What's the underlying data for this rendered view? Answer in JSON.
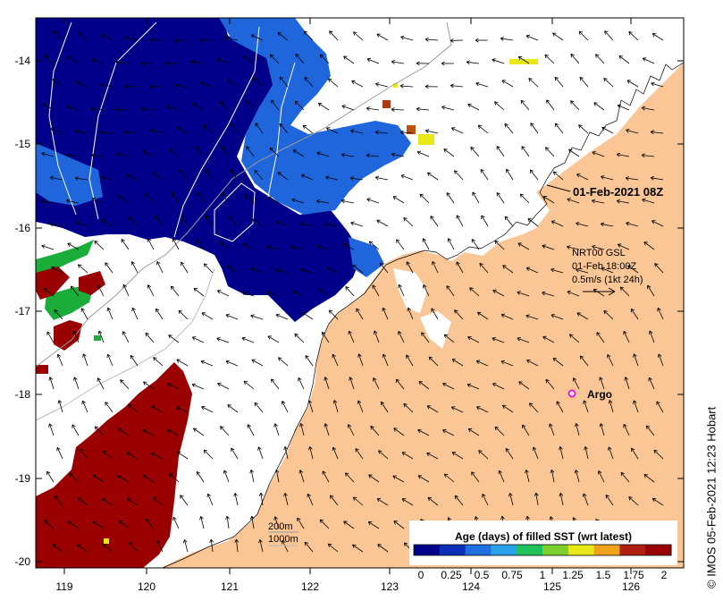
{
  "map": {
    "x_ticks": [
      "119",
      "120",
      "121",
      "122",
      "123",
      "124",
      "125",
      "126"
    ],
    "y_ticks": [
      "-14",
      "-15",
      "-16",
      "-17",
      "-18",
      "-19",
      "-20"
    ],
    "timestamp_label": "01-Feb-2021 08Z",
    "current_block": {
      "line1": "NRT00 GSL",
      "line2": "01-Feb 18:00Z",
      "line3": "0.5m/s (1kt 24h)"
    },
    "argo_label": "Argo",
    "depth_labels": [
      "200m",
      "1000m"
    ],
    "credit": "© IMOS 05-Feb-2021 12:23 Hobart"
  },
  "legend": {
    "title": "Age (days) of filled SST (wrt latest)",
    "ticks": [
      "0",
      "0.25",
      "0.5",
      "0.75",
      "1",
      "1.25",
      "1.5",
      "1.75",
      "2"
    ],
    "colors": [
      "#00008b",
      "#0a2fb8",
      "#1f6fe0",
      "#2aa0e8",
      "#1fc25a",
      "#7ccf2c",
      "#e8e818",
      "#f0a21a",
      "#b02010",
      "#9b0000"
    ]
  },
  "colors": {
    "land": "#fbc695",
    "ocean": "#ffffff",
    "age_0": "#00008b",
    "age_025": "#1f66dd",
    "age_1": "#1aad3a",
    "age_2": "#9b0000",
    "argo": "#e020e0"
  }
}
